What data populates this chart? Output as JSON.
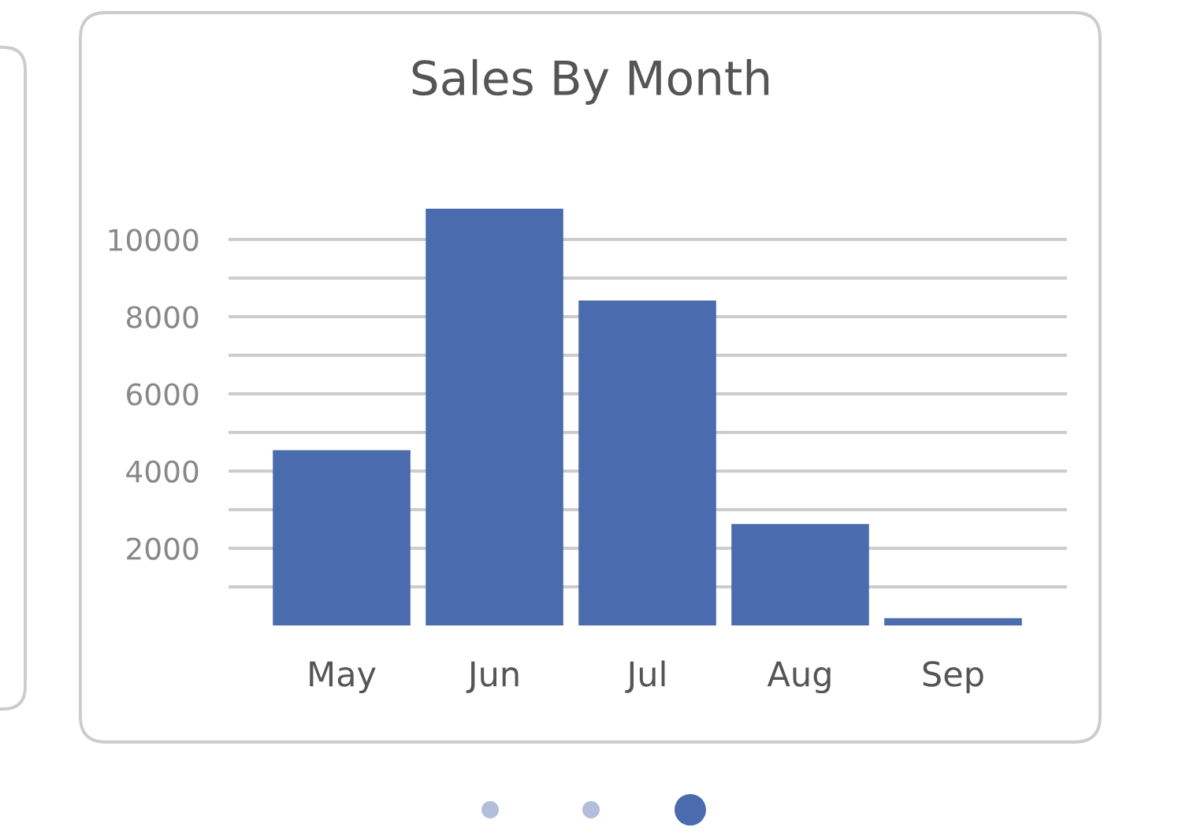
{
  "chart_data": {
    "type": "bar",
    "title": "Sales By Month",
    "categories": [
      "May",
      "Jun",
      "Jul",
      "Aug",
      "Sep"
    ],
    "values": [
      4540,
      10800,
      8420,
      2630,
      190
    ],
    "color": "#4a6bad",
    "ylim": [
      0,
      10800
    ],
    "yticks": [
      {
        "value": 1000,
        "label": null
      },
      2000,
      {
        "value": 3000,
        "label": null
      },
      4000,
      {
        "value": 5000,
        "label": null
      },
      6000,
      {
        "value": 7000,
        "label": null
      },
      8000,
      {
        "value": 9000,
        "label": null
      },
      10000
    ],
    "grid": "y"
  }
}
